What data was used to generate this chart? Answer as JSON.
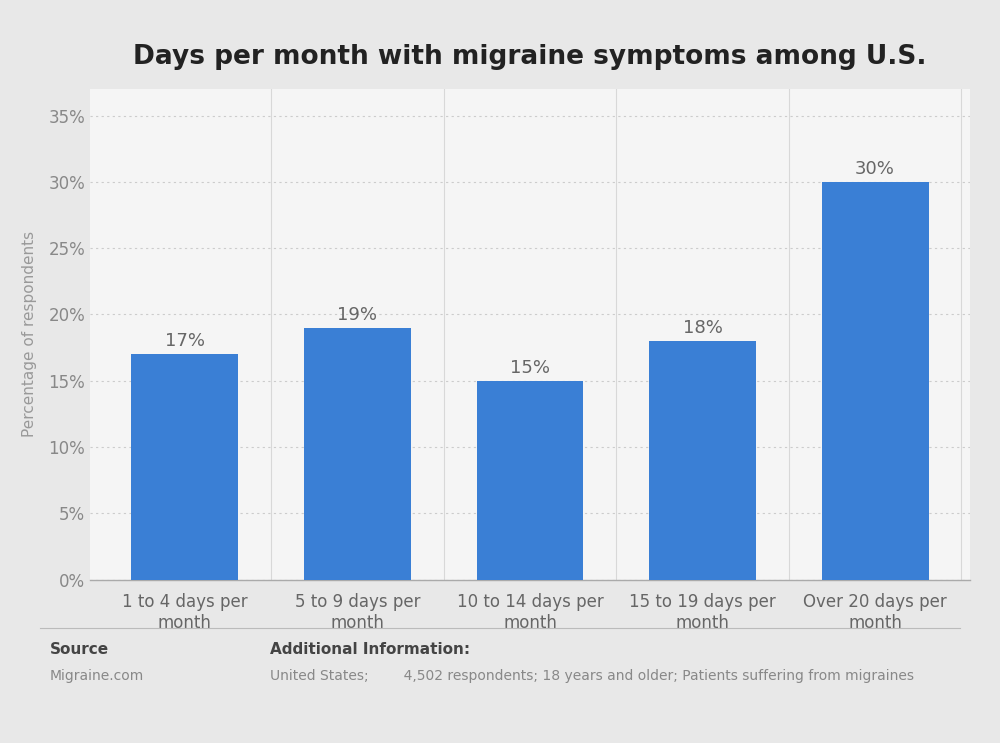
{
  "title": "Days per month with migraine symptoms among U.S.",
  "categories": [
    "1 to 4 days per\nmonth",
    "5 to 9 days per\nmonth",
    "10 to 14 days per\nmonth",
    "15 to 19 days per\nmonth",
    "Over 20 days per\nmonth"
  ],
  "values": [
    17,
    19,
    15,
    18,
    30
  ],
  "bar_color": "#3a7fd5",
  "ylabel": "Percentage of respondents",
  "yticks": [
    0,
    5,
    10,
    15,
    20,
    25,
    30,
    35
  ],
  "ytick_labels": [
    "0%",
    "5%",
    "10%",
    "15%",
    "20%",
    "25%",
    "30%",
    "35%"
  ],
  "ylim": [
    0,
    37
  ],
  "value_labels": [
    "17%",
    "19%",
    "15%",
    "18%",
    "30%"
  ],
  "outer_background_color": "#e8e8e8",
  "plot_background_color": "#f5f5f5",
  "grid_color": "#cccccc",
  "source_label": "Source",
  "source_value": "Migraine.com",
  "additional_label": "Additional Information:",
  "additional_value": "United States;        4,502 respondents; 18 years and older; Patients suffering from migraines",
  "title_fontsize": 19,
  "axis_label_fontsize": 11,
  "tick_label_fontsize": 12,
  "bar_label_fontsize": 13,
  "footer_label_fontsize": 11,
  "footer_value_fontsize": 10
}
